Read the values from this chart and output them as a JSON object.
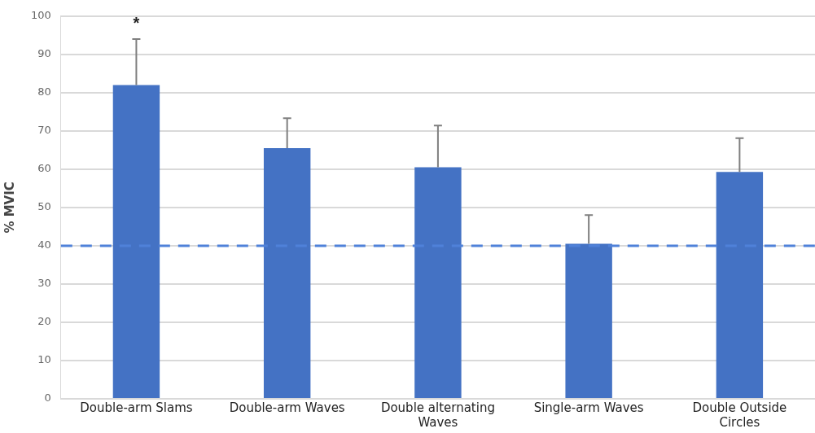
{
  "chart_data": {
    "type": "bar",
    "ylabel": "% MVIC",
    "categories": [
      "Double-arm Slams",
      "Double-arm Waves",
      "Double alternating Waves",
      "Single-arm Waves",
      "Double Outside Circles"
    ],
    "values": [
      82,
      65.5,
      60.5,
      40.5,
      59.3
    ],
    "errors": [
      [
        82,
        94
      ],
      [
        65.5,
        73.3
      ],
      [
        60.5,
        71.4
      ],
      [
        40.5,
        48
      ],
      [
        59.3,
        68.1
      ]
    ],
    "color": "#4472c4",
    "ylim": [
      0,
      100
    ],
    "yticks": [
      0,
      10,
      20,
      30,
      40,
      50,
      60,
      70,
      80,
      90,
      100
    ],
    "grid": "y",
    "ref_lines": [
      {
        "axis": "y",
        "value": 40,
        "color": "#4f81d9",
        "line_style": "dashed"
      }
    ],
    "annotations": [
      "*"
    ]
  }
}
